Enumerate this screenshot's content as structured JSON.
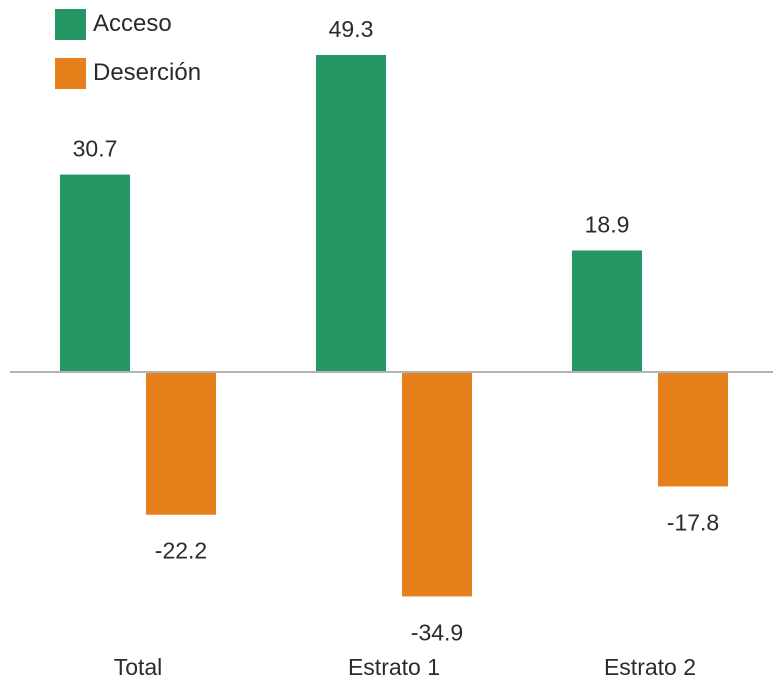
{
  "chart_data": {
    "type": "bar",
    "categories": [
      "Total",
      "Estrato 1",
      "Estrato 2"
    ],
    "series": [
      {
        "name": "Acceso",
        "color": "#259764",
        "values": [
          30.7,
          49.3,
          18.9
        ]
      },
      {
        "name": "Deserción",
        "color": "#E6801A",
        "values": [
          -22.2,
          -34.9,
          -17.8
        ]
      }
    ],
    "value_labels": {
      "Acceso": [
        "30.7",
        "49.3",
        "18.9"
      ],
      "Deserción": [
        "-22.2",
        "-34.9",
        "-17.8"
      ]
    },
    "ylim": [
      -35,
      50
    ],
    "grid": false,
    "zero_line": true,
    "zero_line_color": "#b3b3b3",
    "legend_position": "top-left"
  }
}
